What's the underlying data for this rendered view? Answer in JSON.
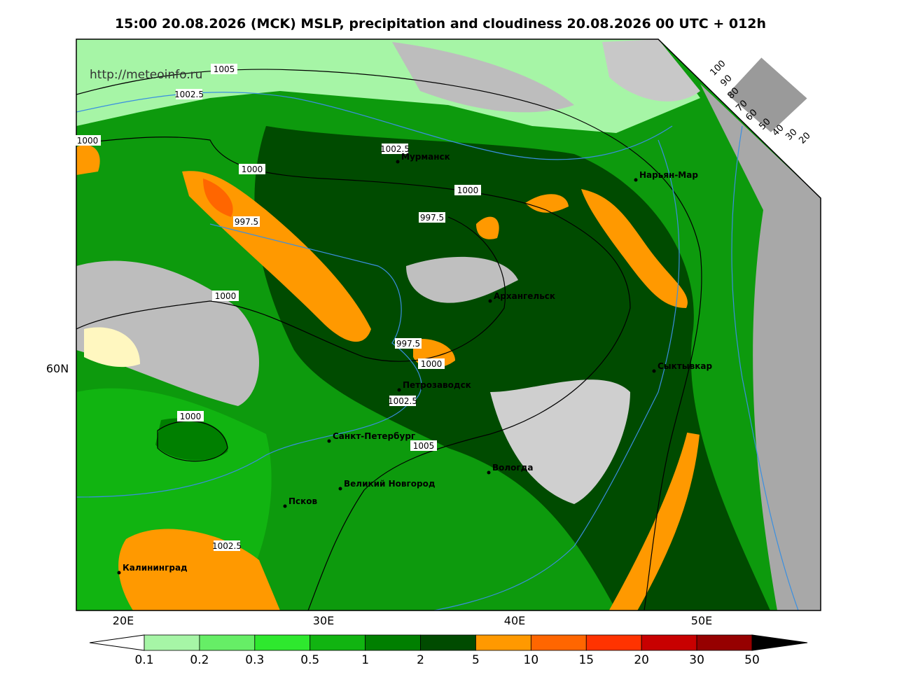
{
  "title": "15:00 20.08.2026 (MCK) MSLP, precipitation and cloudiness 20.08.2026 00 UTC + 012h",
  "url": "http://meteoinfo.ru",
  "isobar_labels": [
    "1005",
    "1002.5",
    "1000",
    "1002.5",
    "1000",
    "1000",
    "997.5",
    "997.5",
    "1000",
    "997.5",
    "1000",
    "1002.5",
    "1000",
    "1005",
    "1002.5"
  ],
  "cities": [
    "Мурманск",
    "Нарьян-Мар",
    "Архангельск",
    "Сыктывкар",
    "Петрозаводск",
    "Санкт-Петербург",
    "Вологда",
    "Великий Новгород",
    "Псков",
    "Калининград"
  ],
  "lat_labels": [
    "60N"
  ],
  "lon_labels": [
    "20E",
    "30E",
    "40E",
    "50E"
  ],
  "legend": {
    "labels": [
      "0.1",
      "0.2",
      "0.3",
      "0.5",
      "1",
      "2",
      "5",
      "10",
      "15",
      "20",
      "30",
      "50"
    ],
    "colors": [
      "#a6f5a6",
      "#66ee66",
      "#2ee82e",
      "#11b411",
      "#007f00",
      "#004b00",
      "#ff9900",
      "#ff6600",
      "#ff3300",
      "#c80000",
      "#960000"
    ]
  },
  "cloud_scale": [
    "100",
    "90",
    "80",
    "70",
    "60",
    "50",
    "40",
    "30",
    "20"
  ]
}
